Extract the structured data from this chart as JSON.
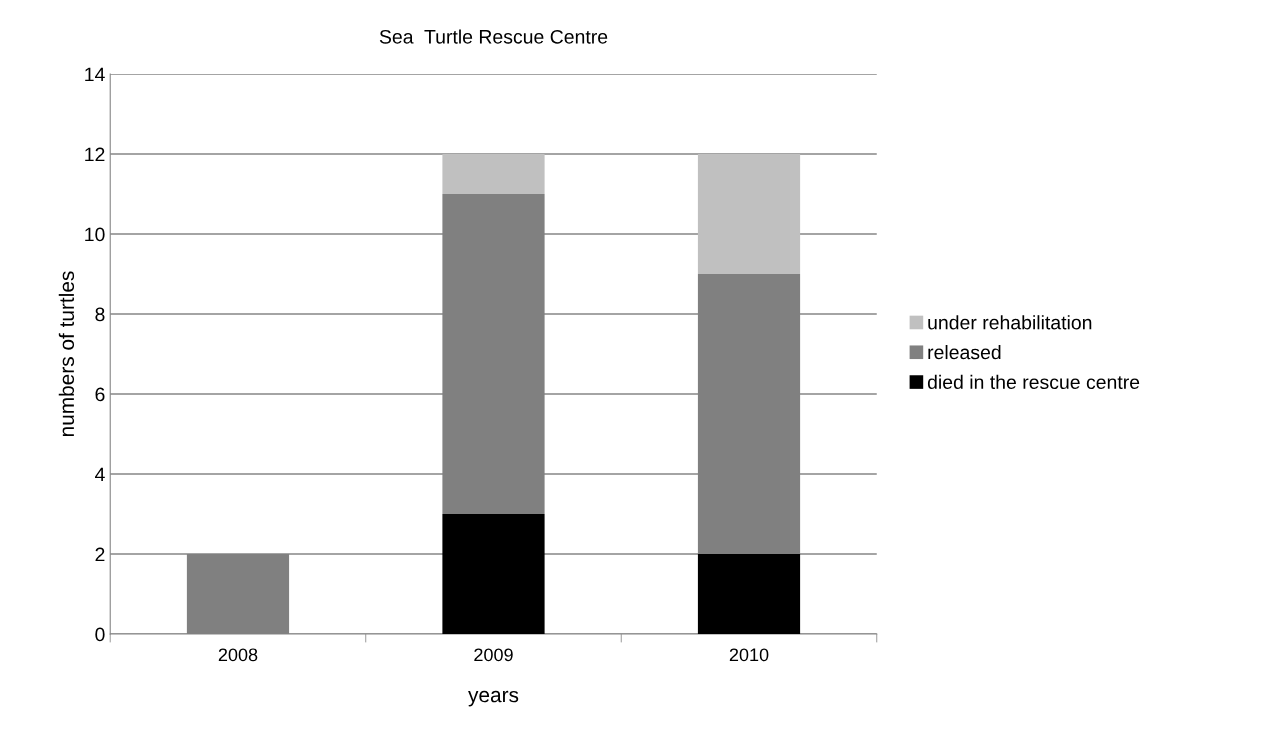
{
  "chart_data": {
    "type": "bar",
    "title": "Sea  Turtle Rescue Centre",
    "xlabel": "years",
    "ylabel": "numbers of turtles",
    "categories": [
      "2008",
      "2009",
      "2010"
    ],
    "stacked": true,
    "series": [
      {
        "name": "died in the rescue centre",
        "color": "#000000",
        "values": [
          0,
          3,
          2
        ]
      },
      {
        "name": "released",
        "color": "#808080",
        "values": [
          2,
          8,
          7
        ]
      },
      {
        "name": "under rehabilitation",
        "color": "#c0c0c0",
        "values": [
          0,
          1,
          3
        ]
      }
    ],
    "ylim": [
      0,
      14
    ],
    "yticks": [
      0,
      2,
      4,
      6,
      8,
      10,
      12,
      14
    ],
    "grid": "y",
    "legend": "right"
  }
}
